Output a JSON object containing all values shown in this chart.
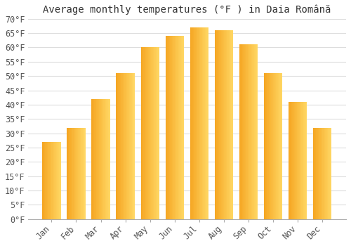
{
  "title": "Average monthly temperatures (°F ) in Daia Română",
  "months": [
    "Jan",
    "Feb",
    "Mar",
    "Apr",
    "May",
    "Jun",
    "Jul",
    "Aug",
    "Sep",
    "Oct",
    "Nov",
    "Dec"
  ],
  "temperatures": [
    27,
    32,
    42,
    51,
    60,
    64,
    67,
    66,
    61,
    51,
    41,
    32
  ],
  "ylim": [
    0,
    70
  ],
  "yticks": [
    0,
    5,
    10,
    15,
    20,
    25,
    30,
    35,
    40,
    45,
    50,
    55,
    60,
    65,
    70
  ],
  "ytick_labels": [
    "0°F",
    "5°F",
    "10°F",
    "15°F",
    "20°F",
    "25°F",
    "30°F",
    "35°F",
    "40°F",
    "45°F",
    "50°F",
    "55°F",
    "60°F",
    "65°F",
    "70°F"
  ],
  "bar_color_dark": "#F5A623",
  "bar_color_light": "#FFD966",
  "background_color": "#ffffff",
  "grid_color": "#dddddd",
  "title_fontsize": 10,
  "tick_fontsize": 8.5
}
